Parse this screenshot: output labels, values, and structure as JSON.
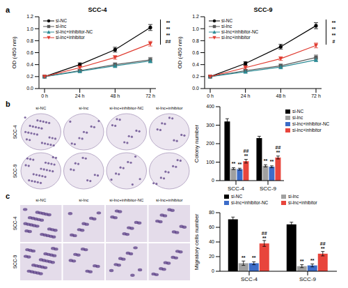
{
  "chart_data": [
    {
      "type": "line",
      "panel": "a",
      "title": "SCC-4",
      "y_label": "OD (450 nm)",
      "categories": [
        "0 h",
        "24 h",
        "48 h",
        "72 h"
      ],
      "ylim": [
        0,
        1.2
      ],
      "yticks": [
        {
          "value": 0,
          "label": "0.0"
        },
        0.2,
        0.4,
        0.6,
        0.8,
        {
          "value": 1,
          "label": "1.0"
        },
        1.2
      ],
      "legend": "upper left",
      "significance": [
        "**",
        "**",
        "**",
        "##"
      ],
      "series": [
        {
          "name": "si-NC",
          "color": "#000000",
          "marker": "circle",
          "values": [
            0.2,
            0.4,
            0.65,
            1.02
          ],
          "errors": [
            0.02,
            0.03,
            0.04,
            0.05
          ]
        },
        {
          "name": "si-lnc",
          "color": "#5a5a5a",
          "marker": "square",
          "values": [
            0.2,
            0.3,
            0.4,
            0.48
          ],
          "errors": [
            0.02,
            0.02,
            0.03,
            0.04
          ]
        },
        {
          "name": "si-lnc+inhibitor-NC",
          "color": "#2b8a94",
          "marker": "triangle",
          "values": [
            0.2,
            0.29,
            0.38,
            0.46
          ],
          "errors": [
            0.02,
            0.02,
            0.03,
            0.03
          ]
        },
        {
          "name": "si-lnc+inhibitor",
          "color": "#e03c31",
          "marker": "triangle-down",
          "values": [
            0.2,
            0.35,
            0.52,
            0.75
          ],
          "errors": [
            0.02,
            0.03,
            0.03,
            0.04
          ]
        }
      ]
    },
    {
      "type": "line",
      "panel": "",
      "title": "SCC-9",
      "y_label": "OD (450 nm)",
      "categories": [
        "0 h",
        "24 h",
        "48 h",
        "72 h"
      ],
      "ylim": [
        0,
        1.2
      ],
      "yticks": [
        {
          "value": 0,
          "label": "0.0"
        },
        0.2,
        0.4,
        0.6,
        0.8,
        {
          "value": 1,
          "label": "1.0"
        },
        1.2
      ],
      "legend": "upper left",
      "significance": [
        "**",
        "**",
        "**",
        "#"
      ],
      "series": [
        {
          "name": "si-NC",
          "color": "#000000",
          "marker": "circle",
          "values": [
            0.2,
            0.42,
            0.7,
            1.05
          ],
          "errors": [
            0.02,
            0.03,
            0.04,
            0.05
          ]
        },
        {
          "name": "si-lnc",
          "color": "#5a5a5a",
          "marker": "square",
          "values": [
            0.2,
            0.3,
            0.38,
            0.52
          ],
          "errors": [
            0.02,
            0.02,
            0.03,
            0.04
          ]
        },
        {
          "name": "si-lnc+inhibitor-NC",
          "color": "#2b8a94",
          "marker": "triangle",
          "values": [
            0.2,
            0.28,
            0.36,
            0.48
          ],
          "errors": [
            0.02,
            0.02,
            0.03,
            0.03
          ]
        },
        {
          "name": "si-lnc+inhibitor",
          "color": "#e03c31",
          "marker": "triangle-down",
          "values": [
            0.2,
            0.35,
            0.5,
            0.72
          ],
          "errors": [
            0.02,
            0.03,
            0.03,
            0.04
          ]
        }
      ]
    },
    {
      "type": "image_grid",
      "panel": "b",
      "columns": [
        "si-NC",
        "si-lnc",
        "si-lnc+inhibitor-NC",
        "si-lnc+inhibitor"
      ],
      "rows": [
        "SCC-4",
        "SCC-9"
      ]
    },
    {
      "type": "bar",
      "panel": "",
      "y_label": "Colony number",
      "categories": [
        "SCC-4",
        "SCC-9"
      ],
      "ylim": [
        0,
        400
      ],
      "yticks": [
        0,
        100,
        200,
        300,
        400
      ],
      "legend": "right",
      "series": [
        {
          "name": "si-NC",
          "color": "#000000",
          "values": [
            320,
            230
          ],
          "errors": [
            15,
            10
          ]
        },
        {
          "name": "si-lnc",
          "color": "#a0a0a0",
          "values": [
            65,
            80
          ],
          "errors": [
            5,
            6
          ],
          "significance": [
            [
              "**"
            ],
            [
              "**"
            ]
          ]
        },
        {
          "name": "si-lnc+inhibitor-NC",
          "color": "#3c6cc8",
          "values": [
            62,
            75
          ],
          "errors": [
            5,
            5
          ],
          "significance": [
            [
              "**"
            ],
            [
              "**"
            ]
          ]
        },
        {
          "name": "si-lnc+inhibitor",
          "color": "#e8453c",
          "values": [
            105,
            125
          ],
          "errors": [
            10,
            8
          ],
          "significance": [
            [
              "##",
              "**"
            ],
            [
              "##",
              "**"
            ]
          ]
        }
      ]
    },
    {
      "type": "image_grid",
      "panel": "c",
      "columns": [
        "si-NC",
        "si-lnc",
        "si-lnc+inhibitor-NC",
        "si-lnc+inhibitor"
      ],
      "rows": [
        "SCC-4",
        "SCC-9"
      ]
    },
    {
      "type": "bar",
      "panel": "",
      "y_label": "Migratory cells number",
      "categories": [
        "SCC-4",
        "SCC-9"
      ],
      "ylim": [
        0,
        80
      ],
      "yticks": [
        0,
        20,
        40,
        60,
        80
      ],
      "legend": "top",
      "series": [
        {
          "name": "si-NC",
          "color": "#000000",
          "values": [
            71,
            64
          ],
          "errors": [
            3,
            3
          ]
        },
        {
          "name": "si-lnc",
          "color": "#a0a0a0",
          "values": [
            11,
            7
          ],
          "errors": [
            3,
            2
          ],
          "significance": [
            [
              "**"
            ],
            [
              "**"
            ]
          ]
        },
        {
          "name": "si-lnc+inhibitor-NC",
          "color": "#3c6cc8",
          "values": [
            11,
            8
          ],
          "errors": [
            2,
            2
          ],
          "significance": [
            [
              "**"
            ],
            [
              "**"
            ]
          ]
        },
        {
          "name": "si-lnc+inhibitor",
          "color": "#e8453c",
          "values": [
            38,
            24
          ],
          "errors": [
            4,
            3
          ],
          "significance": [
            [
              "##",
              "**"
            ],
            [
              "##",
              "**"
            ]
          ]
        }
      ]
    }
  ]
}
